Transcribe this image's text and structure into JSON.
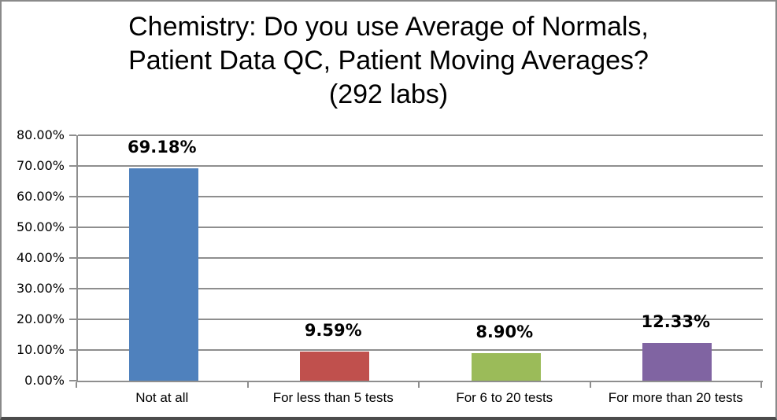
{
  "chart": {
    "title_lines": [
      "Chemistry: Do you use Average of Normals,",
      "Patient Data QC, Patient Moving Averages?",
      "(292 labs)"
    ]
  },
  "chart_data": {
    "type": "bar",
    "title": "Chemistry: Do you use Average of Normals, Patient Data QC, Patient Moving Averages? (292 labs)",
    "categories": [
      "Not at all",
      "For less than 5 tests",
      "For 6 to 20 tests",
      "For more than 20 tests"
    ],
    "values": [
      69.18,
      9.59,
      8.9,
      12.33
    ],
    "value_labels": [
      "69.18%",
      "9.59%",
      "8.90%",
      "12.33%"
    ],
    "bar_colors": [
      "#4F81BD",
      "#C0504D",
      "#9BBB59",
      "#8064A2"
    ],
    "xlabel": "",
    "ylabel": "",
    "ylim": [
      0,
      80
    ],
    "ytick_step": 10,
    "ytick_labels": [
      "0.00%",
      "10.00%",
      "20.00%",
      "30.00%",
      "40.00%",
      "50.00%",
      "60.00%",
      "70.00%",
      "80.00%"
    ],
    "grid": true,
    "legend": false,
    "gridline_color": "#8e8e8e",
    "text_color": "#000000",
    "background_color": "#ffffff"
  }
}
